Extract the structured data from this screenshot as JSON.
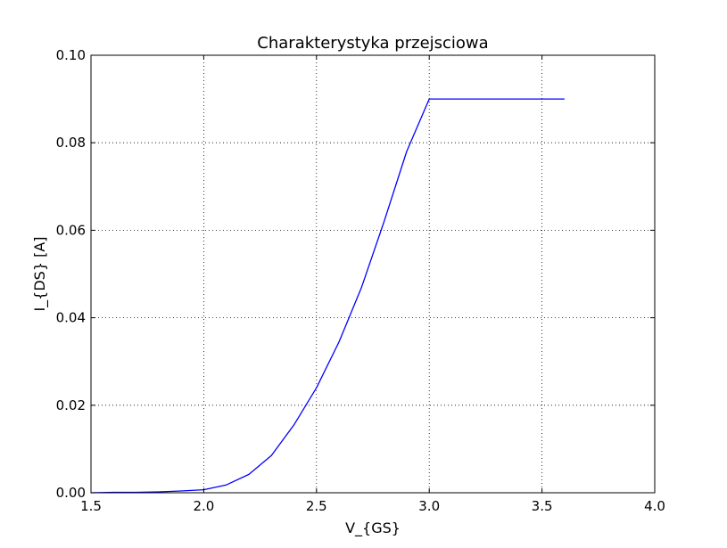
{
  "chart_data": {
    "type": "line",
    "title": "Charakterystyka przejsciowa",
    "xlabel": "V_{GS}",
    "ylabel": "I_{DS} [A]",
    "xlim": [
      1.5,
      4.0
    ],
    "ylim": [
      0.0,
      0.1
    ],
    "grid": true,
    "x_ticks": [
      1.5,
      2.0,
      2.5,
      3.0,
      3.5,
      4.0
    ],
    "x_tick_labels": [
      "1.5",
      "2.0",
      "2.5",
      "3.0",
      "3.5",
      "4.0"
    ],
    "y_ticks": [
      0.0,
      0.02,
      0.04,
      0.06,
      0.08,
      0.1
    ],
    "y_tick_labels": [
      "0.00",
      "0.02",
      "0.04",
      "0.06",
      "0.08",
      "0.10"
    ],
    "series": [
      {
        "color": "#0000ff",
        "x": [
          1.5,
          1.6,
          1.7,
          1.8,
          1.9,
          2.0,
          2.1,
          2.2,
          2.3,
          2.4,
          2.5,
          2.6,
          2.7,
          2.8,
          2.9,
          3.0,
          3.1,
          3.2,
          3.3,
          3.4,
          3.5,
          3.6
        ],
        "y": [
          0.0,
          0.0001,
          0.0001,
          0.0002,
          0.0004,
          0.0007,
          0.0018,
          0.0042,
          0.0085,
          0.0155,
          0.024,
          0.0345,
          0.047,
          0.062,
          0.078,
          0.09,
          0.09,
          0.09,
          0.09,
          0.09,
          0.09,
          0.09
        ]
      }
    ]
  }
}
